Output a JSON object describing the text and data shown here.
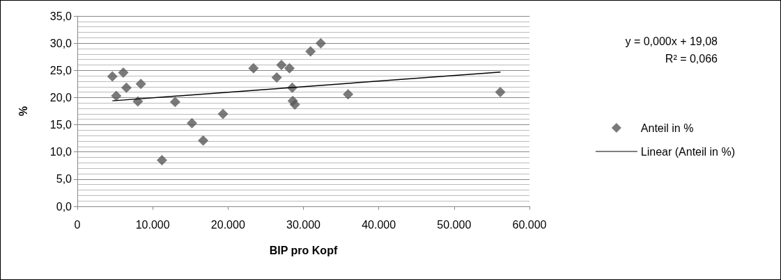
{
  "chart_data": {
    "type": "scatter",
    "xlabel": "BIP pro Kopf",
    "ylabel": "%",
    "xlim": [
      0,
      60000
    ],
    "xticks": [
      {
        "value": 0,
        "label": "0"
      },
      {
        "value": 10000,
        "label": "10.000"
      },
      {
        "value": 20000,
        "label": "20.000"
      },
      {
        "value": 30000,
        "label": "30.000"
      },
      {
        "value": 40000,
        "label": "40.000"
      },
      {
        "value": 50000,
        "label": "50.000"
      },
      {
        "value": 60000,
        "label": "60.000"
      }
    ],
    "ylim": [
      0,
      35
    ],
    "yticks": [
      {
        "value": 0,
        "label": "0,0"
      },
      {
        "value": 5,
        "label": "5,0"
      },
      {
        "value": 10,
        "label": "10,0"
      },
      {
        "value": 15,
        "label": "15,0"
      },
      {
        "value": 20,
        "label": "20,0"
      },
      {
        "value": 25,
        "label": "25,0"
      },
      {
        "value": 30,
        "label": "30,0"
      },
      {
        "value": 35,
        "label": "35,0"
      }
    ],
    "grid": "y",
    "legend": "right",
    "marker": "diamond",
    "annotations": [
      "y = 0,000x + 19,08",
      "R² = 0,066"
    ],
    "series": [
      {
        "name": "Anteil in %",
        "color": "#595959",
        "x": [
          4650,
          6100,
          5160,
          6510,
          8430,
          8030,
          11230,
          12980,
          15210,
          16700,
          19330,
          23370,
          26460,
          27080,
          28150,
          28520,
          28590,
          28860,
          30940,
          32300,
          35930,
          56120
        ],
        "values": [
          23.9,
          24.6,
          20.3,
          21.8,
          22.5,
          19.3,
          8.5,
          19.2,
          15.3,
          12.1,
          17.0,
          25.4,
          23.7,
          26.0,
          25.4,
          21.8,
          19.4,
          18.7,
          28.5,
          30.0,
          20.6,
          21.0
        ]
      },
      {
        "name": "Linear (Anteil in %)",
        "type": "line",
        "color": "#000000",
        "marker": "none",
        "line_style": "solid",
        "x": [
          4650,
          56150
        ],
        "values": [
          19.4,
          24.7
        ]
      }
    ]
  }
}
